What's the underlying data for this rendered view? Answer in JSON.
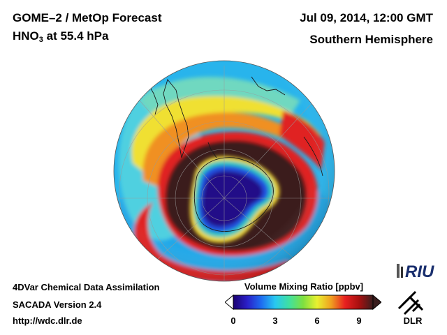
{
  "header": {
    "title_line1": "GOME–2 / MetOp Forecast",
    "species": "HNO",
    "species_sub": "3",
    "pressure": " at 55.4 hPa",
    "datetime": "Jul 09, 2014, 12:00 GMT",
    "region": "Southern Hemisphere"
  },
  "footer": {
    "line1": "4DVar Chemical Data Assimilation",
    "line2": "SACADA Version 2.4",
    "line3": "http://wdc.dlr.de"
  },
  "colorbar": {
    "title": "Volume Mixing Ratio [ppbv]",
    "ticks": [
      "0",
      "3",
      "6",
      "9"
    ],
    "min": 0,
    "max": 10,
    "colors": [
      "#1a0070",
      "#2a1fc8",
      "#1e6cf0",
      "#28c8f0",
      "#40e0a0",
      "#7ee040",
      "#e8f030",
      "#f0a020",
      "#e82020",
      "#a81010",
      "#3a1e1e"
    ]
  },
  "logos": {
    "riu": "RIU",
    "dlr": "DLR"
  },
  "map": {
    "projection": "orthographic, south pole centred",
    "icons": [
      "south-pole-globe"
    ]
  }
}
